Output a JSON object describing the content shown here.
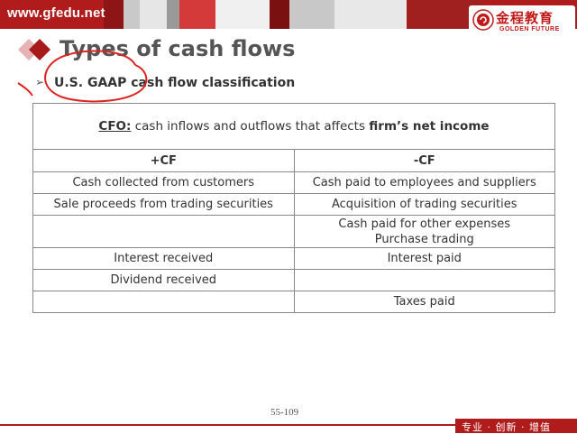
{
  "header": {
    "site_url": "www.gfedu.net",
    "logo_cn": "金程教育",
    "logo_en": "GOLDEN FUTURE",
    "brand_color": "#b01c1c"
  },
  "slide": {
    "title": "Types of cash flows",
    "subtitle_bullet": "➢",
    "subtitle": "U.S. GAAP cash flow classification"
  },
  "table": {
    "cfo_label": "CFO:",
    "cfo_text": " cash inflows and outflows that affects ",
    "cfo_bold": "firm’s net income",
    "col_plus": "+CF",
    "col_minus": "-CF",
    "rows": [
      {
        "plus": "Cash collected from customers",
        "minus": "Cash paid to employees and suppliers"
      },
      {
        "plus": "Sale proceeds from trading securities",
        "minus": "Acquisition of trading securities"
      },
      {
        "plus": "",
        "minus_line1": "Cash paid for other expenses",
        "minus_line2": "Purchase trading"
      },
      {
        "plus": "Interest received",
        "minus": "Interest paid"
      },
      {
        "plus": "Dividend received",
        "minus": ""
      },
      {
        "plus": "",
        "minus": "Taxes paid"
      }
    ]
  },
  "footer": {
    "page_number": "55-109",
    "slogan": "专业 · 创新 · 增值"
  }
}
